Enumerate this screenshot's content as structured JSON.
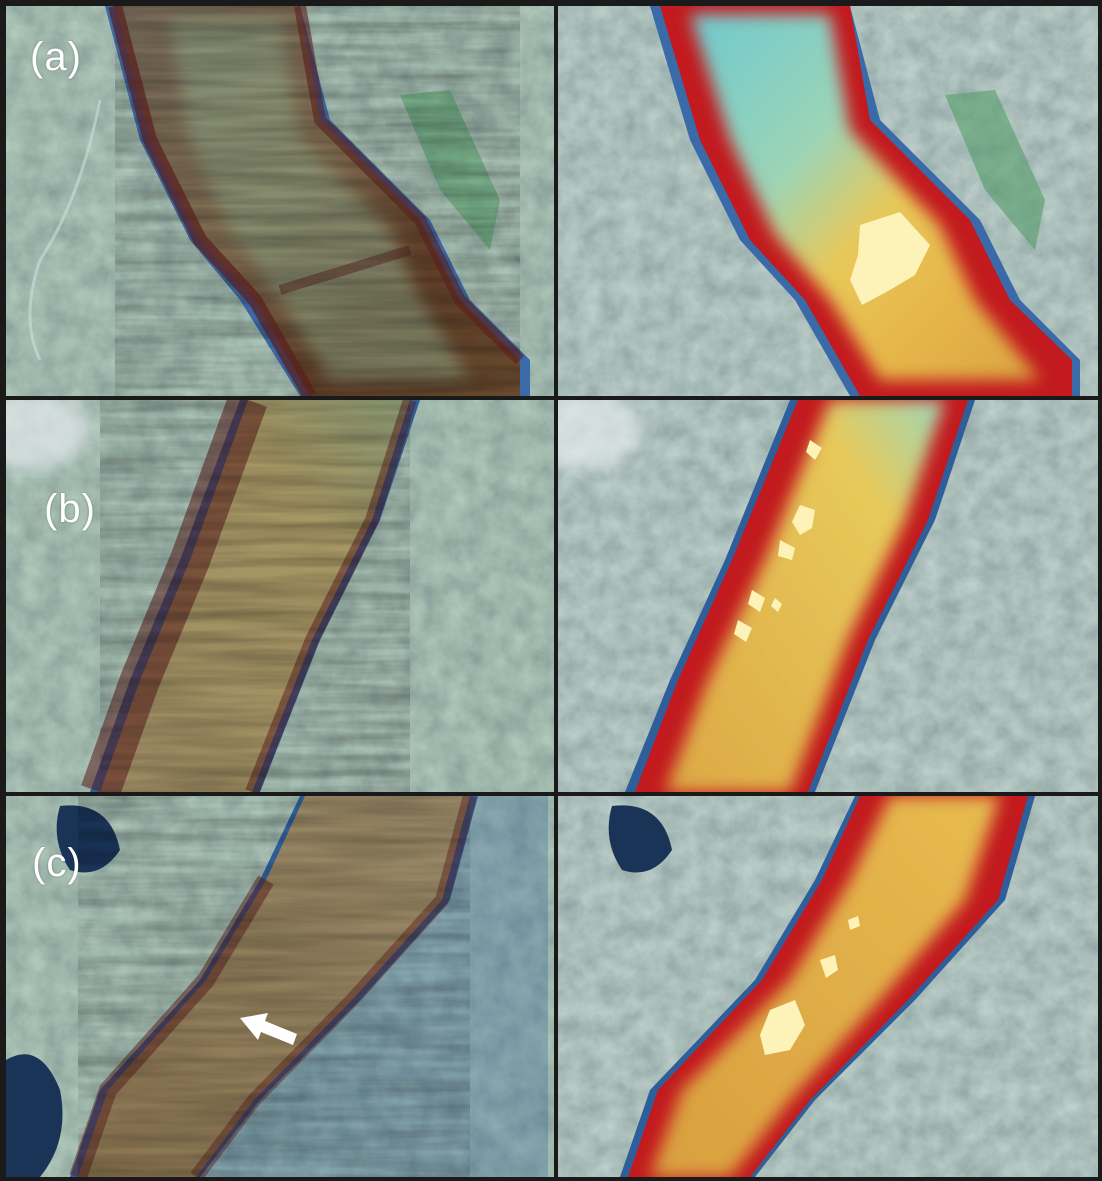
{
  "panels": {
    "a": {
      "label": "(a)"
    },
    "b": {
      "label": "(b)"
    },
    "c": {
      "label": "(c)"
    }
  },
  "colors": {
    "forest": "#4d6a5e",
    "forest_dark": "#2f4a3c",
    "water": "#2f5f9a",
    "lake": "#1a3458",
    "raw_bathymetry_edge": "#6b2a26",
    "raw_bathymetry_floor": "#8d7a52",
    "shaded_edge_red": "#b8141c",
    "shaded_floor_orange": "#dca540",
    "shaded_floor_yellow": "#e6c45a",
    "shaded_deep_cyan": "#7fc8c4",
    "landslide_highlight": "#fdf2b8",
    "border": "#1a1a1a"
  },
  "annotations": {
    "arrow": "white-arrow-icon"
  }
}
